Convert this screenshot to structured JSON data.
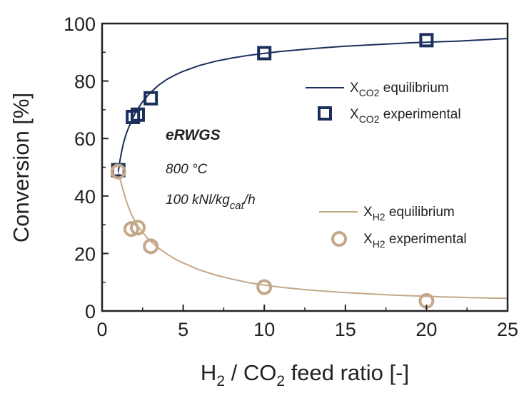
{
  "chart_data": {
    "type": "scatter",
    "xlabel_parts": [
      "H",
      "2",
      " / CO",
      "2",
      " feed ratio [-]"
    ],
    "ylabel": "Conversion [%]",
    "xlim": [
      0,
      25
    ],
    "ylim": [
      0,
      100
    ],
    "x_ticks": [
      "0",
      "5",
      "10",
      "15",
      "20",
      "25"
    ],
    "y_ticks": [
      "0",
      "20",
      "40",
      "60",
      "80",
      "100"
    ],
    "grid": false,
    "legend_placement": "right",
    "annotations": {
      "title": "eRWGS",
      "temperature": "800 °C",
      "ghsv_main": "100 kNl/kg",
      "ghsv_sub": "cat",
      "ghsv_tail": "/h"
    },
    "series": [
      {
        "id": "xco2_eq",
        "kind": "line",
        "legend_parts": [
          "X",
          "CO2",
          " equilibrium"
        ],
        "color": "#1b2f5c",
        "x": [
          1,
          1.1,
          1.2,
          1.3,
          1.4,
          1.5,
          1.6,
          1.8,
          2,
          2.2,
          2.5,
          2.8,
          3,
          3.5,
          4,
          4.5,
          5,
          6,
          7,
          8,
          9,
          10,
          11,
          12,
          13,
          14,
          15,
          16,
          17,
          18,
          19,
          20,
          21,
          22,
          23,
          24,
          25
        ],
        "y": [
          48.5,
          52.3,
          55.4,
          57.9,
          60.0,
          61.8,
          63.3,
          65.9,
          68.3,
          70.3,
          72.8,
          74.9,
          76.1,
          78.6,
          80.6,
          82.1,
          83.4,
          85.4,
          86.9,
          88.0,
          88.9,
          89.6,
          90.3,
          90.8,
          91.3,
          91.7,
          92.1,
          92.4,
          92.7,
          93.0,
          93.3,
          93.5,
          93.7,
          93.9,
          94.2,
          94.5,
          94.8
        ]
      },
      {
        "id": "xco2_exp",
        "kind": "marker-square",
        "legend_parts": [
          "X",
          "CO2",
          " experimental"
        ],
        "color": "#1b2f5c",
        "x": [
          1,
          1.9,
          2.2,
          3,
          10,
          20
        ],
        "y": [
          49,
          67.5,
          68.3,
          74,
          89.7,
          94.2
        ]
      },
      {
        "id": "xh2_eq",
        "kind": "line",
        "legend_parts": [
          "X",
          "H2",
          " equilibrium"
        ],
        "color": "#c4a88a",
        "x": [
          1,
          1.1,
          1.2,
          1.3,
          1.4,
          1.5,
          1.6,
          1.8,
          2,
          2.2,
          2.5,
          2.8,
          3,
          3.5,
          4,
          4.5,
          5,
          6,
          7,
          8,
          9,
          10,
          11,
          12,
          13,
          14,
          15,
          16,
          17,
          18,
          19,
          20,
          21,
          22,
          23,
          24,
          25
        ],
        "y": [
          48.5,
          46.0,
          44.0,
          42.0,
          40.0,
          38.2,
          36.5,
          33.7,
          31.5,
          29.6,
          27.3,
          25.3,
          24.2,
          21.8,
          19.8,
          18.1,
          16.7,
          14.3,
          12.5,
          11.1,
          9.9,
          9.0,
          8.3,
          7.7,
          7.2,
          6.8,
          6.4,
          6.1,
          5.8,
          5.5,
          5.3,
          5.1,
          4.9,
          4.8,
          4.6,
          4.5,
          4.4
        ]
      },
      {
        "id": "xh2_exp",
        "kind": "marker-circle",
        "legend_parts": [
          "X",
          "H2",
          " experimental"
        ],
        "color": "#c4a88a",
        "x": [
          1,
          1.8,
          2.2,
          3,
          10,
          20
        ],
        "y": [
          48.5,
          28.5,
          29,
          22.5,
          8.3,
          3.5
        ]
      }
    ]
  }
}
